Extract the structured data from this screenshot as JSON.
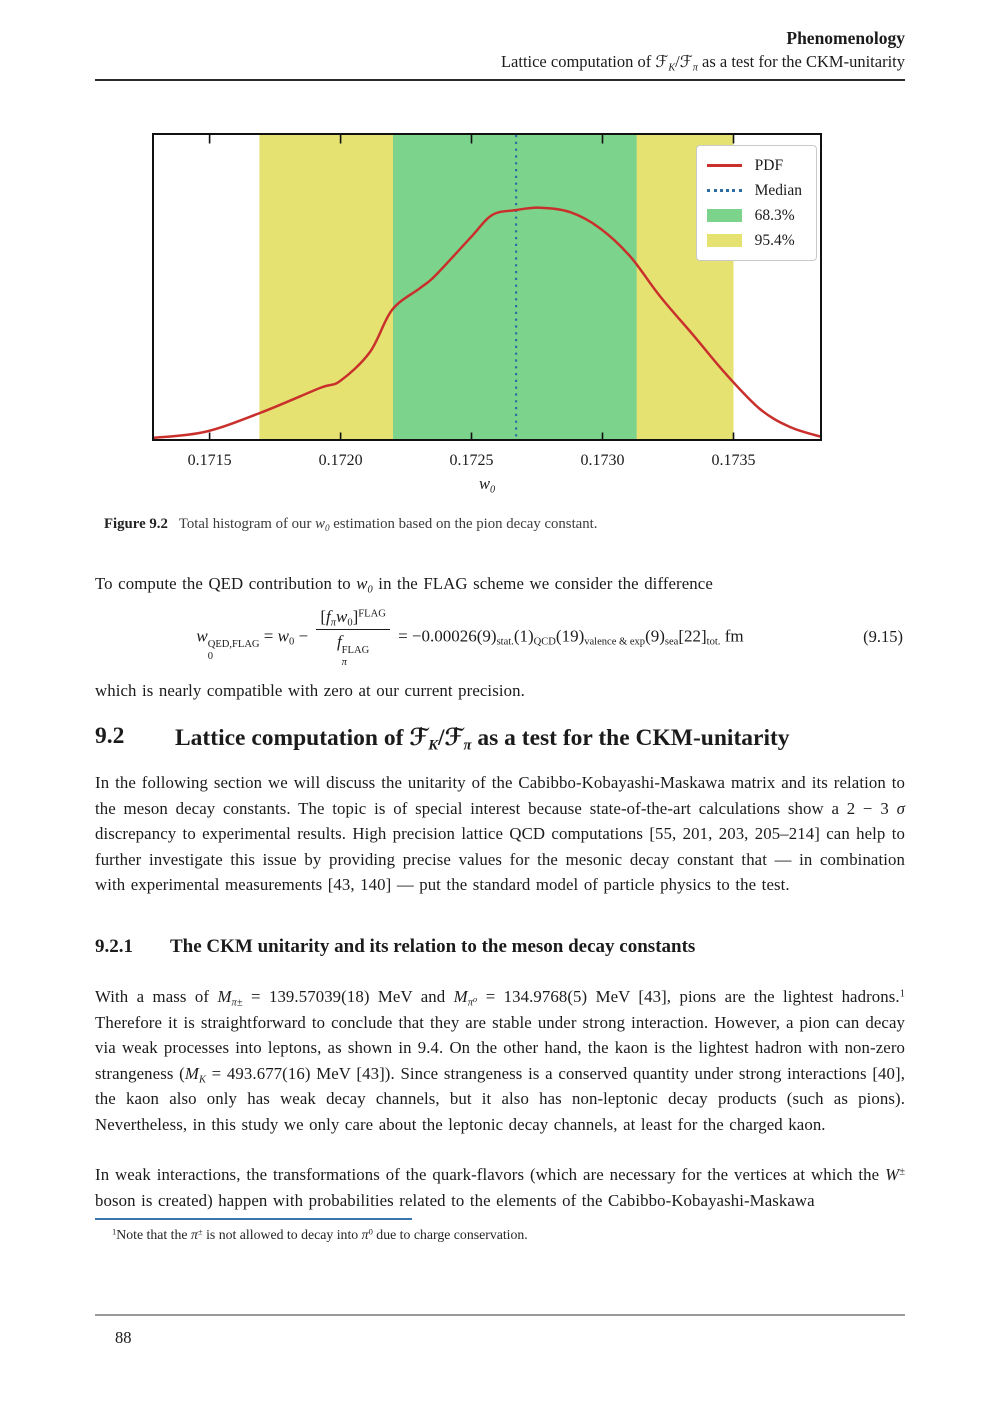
{
  "header": {
    "line1": "Phenomenology",
    "line2_segs": [
      {
        "t": "Lattice computation of "
      },
      {
        "scr": "ℱ"
      },
      {
        "sub": "K",
        "it": true
      },
      {
        "t": "/"
      },
      {
        "scr": "ℱ"
      },
      {
        "sub": "π",
        "it": true
      },
      {
        "t": " as a test for the CKM-unitarity"
      }
    ]
  },
  "chart_data": {
    "type": "line",
    "title": "",
    "xlabel": "w0",
    "ylabel": "",
    "xlim": [
      0.17128,
      0.173838
    ],
    "ylim": [
      0,
      1.32
    ],
    "grid": false,
    "x_ticks": [
      0.1715,
      0.172,
      0.1725,
      0.173,
      0.1735
    ],
    "x_tick_labels": [
      "0.1715",
      "0.1720",
      "0.1725",
      "0.1730",
      "0.1735"
    ],
    "median": 0.17267,
    "band_683": [
      0.1722,
      0.17313
    ],
    "band_954": [
      0.17169,
      0.1735
    ],
    "pdf_curve": {
      "x": [
        0.17128,
        0.171482,
        0.171692,
        0.171921,
        0.171998,
        0.172112,
        0.172196,
        0.172303,
        0.17236,
        0.172494,
        0.172578,
        0.172666,
        0.172761,
        0.172876,
        0.17299,
        0.173105,
        0.173219,
        0.173353,
        0.173468,
        0.173601,
        0.173716,
        0.173838
      ],
      "y": [
        0.013,
        0.039,
        0.12,
        0.227,
        0.257,
        0.381,
        0.561,
        0.655,
        0.707,
        0.869,
        0.968,
        0.989,
        1.0,
        0.981,
        0.912,
        0.792,
        0.621,
        0.445,
        0.291,
        0.137,
        0.06,
        0.017
      ]
    },
    "legend_position": "upper right",
    "legend": [
      {
        "label": "PDF",
        "swatch": "line",
        "color": "#c9302c"
      },
      {
        "label": "Median",
        "swatch": "dotted",
        "color": "#2e6da4"
      },
      {
        "label": "68.3%",
        "swatch": "patch",
        "color": "#7cd38c"
      },
      {
        "label": "95.4%",
        "swatch": "patch",
        "color": "#e5e272"
      }
    ],
    "colors": {
      "pdf": "#c9302c",
      "median": "#2e6da4",
      "band_683": "#7cd38c",
      "band_954": "#e5e272",
      "axis": "#111111"
    }
  },
  "figure": {
    "xlabel_segs": [
      {
        "i": "w"
      },
      {
        "sub": "0",
        "it": true
      }
    ],
    "caption_segs": [
      {
        "b": "Figure 9.2"
      },
      {
        "t": "Total histogram of our "
      },
      {
        "i": "w"
      },
      {
        "sub": "0",
        "it": true
      },
      {
        "t": " estimation based on the pion decay constant."
      }
    ]
  },
  "para_intro_segs": [
    {
      "t": "To compute the QED contribution to "
    },
    {
      "i": "w"
    },
    {
      "sub": "0",
      "it": true
    },
    {
      "t": " in the FLAG scheme we consider the difference"
    }
  ],
  "equation": {
    "number": "(9.15)",
    "segs": [
      {
        "i": "w"
      },
      {
        "subsup": {
          "sup": "QED,FLAG",
          "sub": "0"
        }
      },
      {
        "t": " = "
      },
      {
        "i": "w"
      },
      {
        "sub": "0"
      },
      {
        "t": " − "
      },
      {
        "frac": {
          "num": [
            {
              "t": "["
            },
            {
              "i": "f"
            },
            {
              "sub": "π",
              "it": true
            },
            {
              "i": "w"
            },
            {
              "sub": "0"
            },
            {
              "t": "]"
            },
            {
              "sup": "FLAG"
            }
          ],
          "den": [
            {
              "i": "f"
            },
            {
              "subsup": {
                "sup": "FLAG",
                "sub": "π",
                "it": true
              }
            }
          ]
        }
      },
      {
        "t": " = −0.00026(9)"
      },
      {
        "sub": "stat."
      },
      {
        "t": "(1)"
      },
      {
        "sub": "QCD"
      },
      {
        "t": "(19)"
      },
      {
        "sub": "valence & exp"
      },
      {
        "t": "(9)"
      },
      {
        "sub": "sea"
      },
      {
        "t": "[22]"
      },
      {
        "sub": "tot."
      },
      {
        "t": " fm"
      }
    ]
  },
  "para_after_eq_segs": [
    {
      "t": "which is nearly compatible with zero at our current precision."
    }
  ],
  "section_92": {
    "number": "9.2",
    "title_segs": [
      {
        "t": "Lattice computation of "
      },
      {
        "scr": "ℱ"
      },
      {
        "sub": "K",
        "it": true
      },
      {
        "t": "/"
      },
      {
        "scr": "ℱ"
      },
      {
        "sub": "π",
        "it": true
      },
      {
        "t": " as a test for the CKM-unitarity"
      }
    ]
  },
  "para_ckm_segs": [
    {
      "t": "In the following section we will discuss the unitarity of the Cabibbo-Kobayashi-Maskawa matrix and its relation to the meson decay constants. The topic is of special interest because state-of-the-art calculations show a 2 − 3 "
    },
    {
      "i": "σ"
    },
    {
      "t": " discrepancy to experimental results. High precision lattice QCD computations [55, 201, 203, 205–214] can help to further investigate this issue by providing precise values for the mesonic decay constant that — in combination with experimental measurements [43, 140] — put the standard model of particle physics to the test."
    }
  ],
  "section_921": {
    "number": "9.2.1",
    "title": "The CKM unitarity and its relation to the meson decay constants"
  },
  "para_pion_segs": [
    {
      "t": "With a mass of "
    },
    {
      "i": "M"
    },
    {
      "sub": "π±",
      "it": true
    },
    {
      "t": " = 139.57039(18) MeV and "
    },
    {
      "i": "M"
    },
    {
      "sub": "π⁰",
      "it": true
    },
    {
      "t": " = 134.9768(5) MeV [43], pions are the lightest hadrons."
    },
    {
      "sup": "1"
    },
    {
      "t": " Therefore it is straightforward to conclude that they are stable under strong interaction. However, a pion can decay via weak processes into leptons, as shown in 9.4. On the other hand, the kaon is the lightest hadron with non-zero strangeness ("
    },
    {
      "i": "M"
    },
    {
      "sub": "K",
      "it": true
    },
    {
      "t": " = 493.677(16) MeV [43]). Since strangeness is a conserved quantity under strong interactions [40], the kaon also only has weak decay channels, but it also has non-leptonic decay products (such as pions). Nevertheless, in this study we only care about the leptonic decay channels, at least for the charged kaon."
    }
  ],
  "para_weak_segs": [
    {
      "t": "In weak interactions, the transformations of the quark-flavors (which are necessary for the vertices at which the "
    },
    {
      "i": "W"
    },
    {
      "sup": "±",
      "it": true
    },
    {
      "t": " boson is created) happen with probabilities related to the elements of the Cabibbo-Kobayashi-Maskawa"
    }
  ],
  "footnote_segs": [
    {
      "sup": "1"
    },
    {
      "t": "Note that the "
    },
    {
      "i": "π"
    },
    {
      "sup": "±",
      "it": true
    },
    {
      "t": " is not allowed to decay into "
    },
    {
      "i": "π"
    },
    {
      "sup": "0"
    },
    {
      "t": " due to charge conservation."
    }
  ],
  "footer": {
    "page_number": "88"
  }
}
